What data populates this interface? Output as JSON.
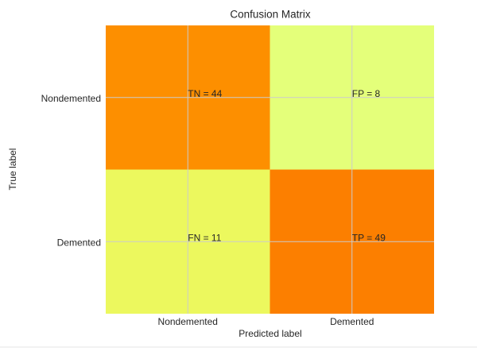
{
  "chart_data": {
    "type": "heatmap",
    "title": "Confusion Matrix",
    "x_label": "Predicted label",
    "y_label": "True label",
    "x_categories": [
      "Nondemented",
      "Demented"
    ],
    "y_categories": [
      "Nondemented",
      "Demented"
    ],
    "values": [
      [
        44,
        8
      ],
      [
        11,
        49
      ]
    ],
    "value_labels": [
      [
        "TN = 44",
        "FP = 8"
      ],
      [
        "FN = 11",
        "TP = 49"
      ]
    ],
    "colormap": [
      "#e4ff7a",
      "#ffe81a",
      "#ffbd00",
      "#ffa000",
      "#fc7f00"
    ],
    "grid": true
  }
}
